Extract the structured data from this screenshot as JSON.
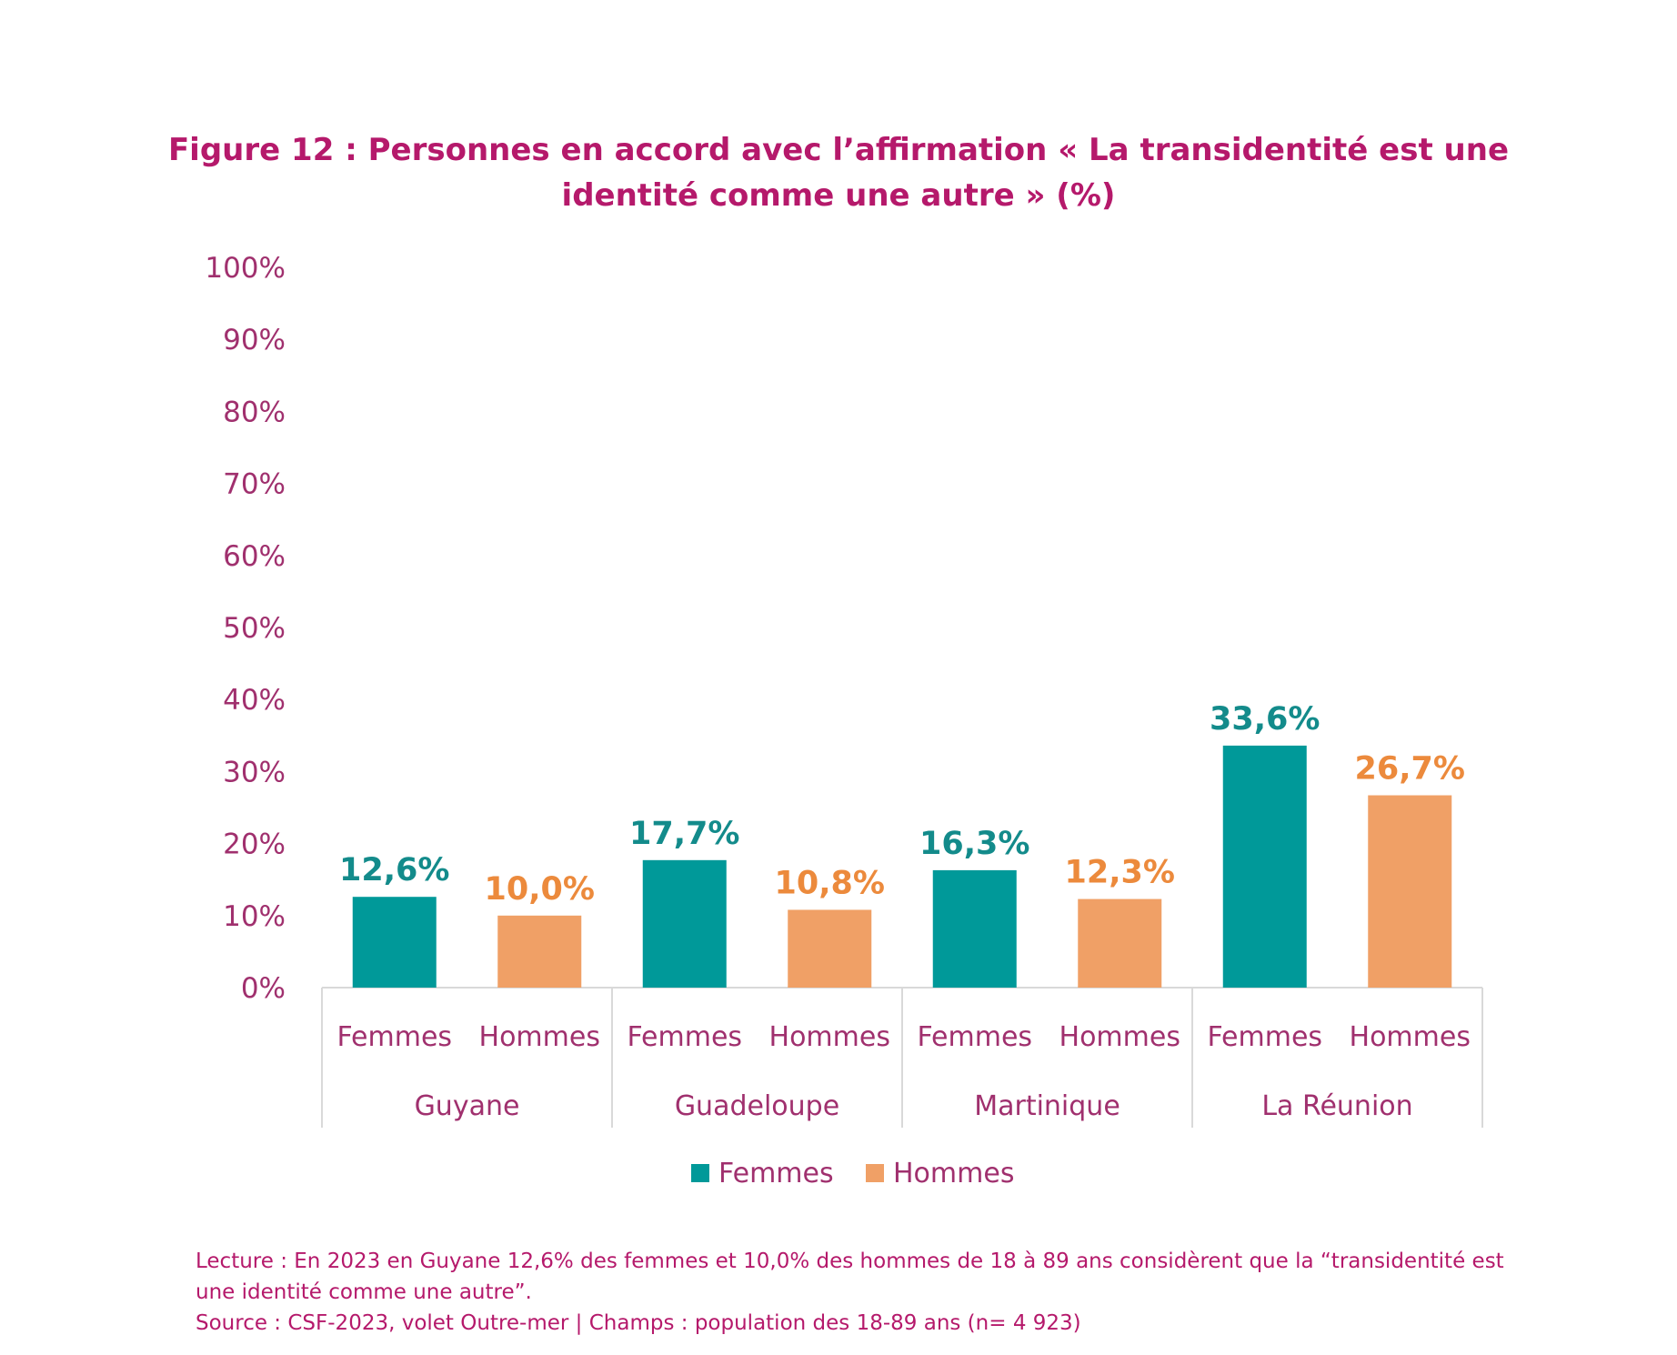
{
  "title_line1": "Figure 12 : Personnes en accord avec l’affirmation « La transidentité est une",
  "title_line2": "identité comme une autre » (%)",
  "chart_data": {
    "type": "bar",
    "groups": [
      "Guyane",
      "Guadeloupe",
      "Martinique",
      "La Réunion"
    ],
    "sub_categories": [
      "Femmes",
      "Hommes"
    ],
    "series": [
      {
        "name": "Femmes",
        "values": [
          12.6,
          17.7,
          16.3,
          33.6
        ],
        "labels": [
          "12,6%",
          "17,7%",
          "16,3%",
          "33,6%"
        ],
        "color": "#009999"
      },
      {
        "name": "Hommes",
        "values": [
          10.0,
          10.8,
          12.3,
          26.7
        ],
        "labels": [
          "10,0%",
          "10,8%",
          "12,3%",
          "26,7%"
        ],
        "color": "#f0a066"
      }
    ],
    "ylim": [
      0,
      100
    ],
    "yticks": [
      "0%",
      "10%",
      "20%",
      "30%",
      "40%",
      "50%",
      "60%",
      "70%",
      "80%",
      "90%",
      "100%"
    ],
    "tick_color": "#a0306e",
    "legend": [
      "Femmes",
      "Hommes"
    ],
    "legend_position": "bottom"
  },
  "footnote": {
    "line1": "Lecture : En 2023 en Guyane 12,6% des femmes et 10,0% des hommes de 18 à 89 ans considèrent que la “transidentité est",
    "line2": "une identité comme une autre”.",
    "line3": "Source : CSF-2023, volet Outre-mer | Champs : population des 18-89 ans (n= 4 923)"
  }
}
